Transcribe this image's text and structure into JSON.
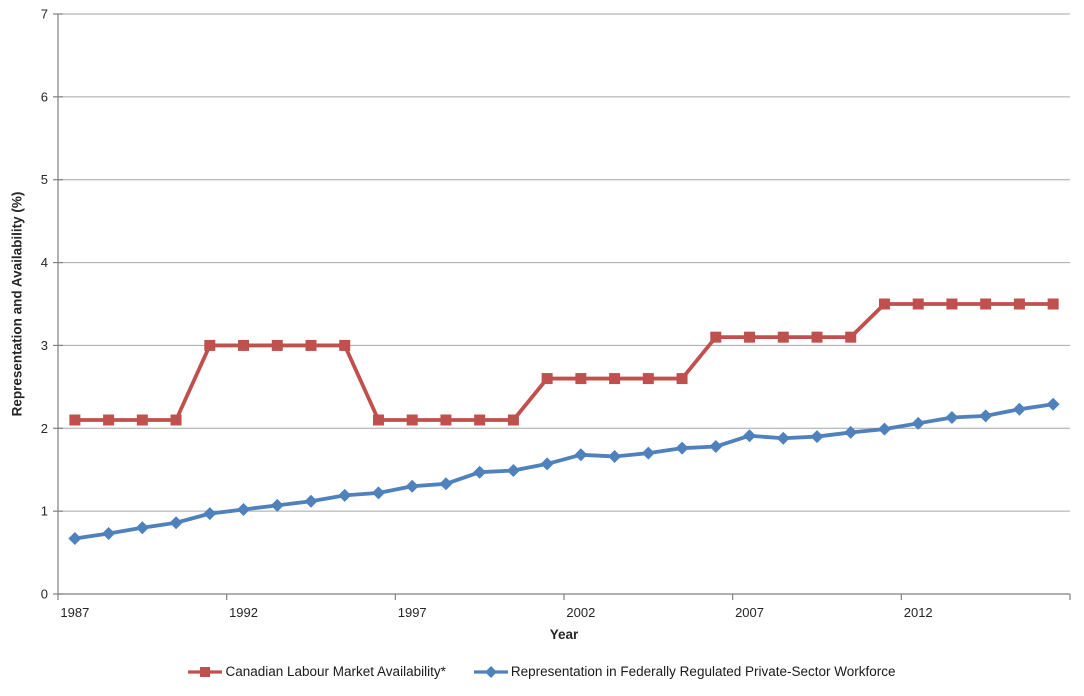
{
  "chart_data": {
    "type": "line",
    "title": "",
    "xlabel": "Year",
    "ylabel": "Representation and Availability (%)",
    "ylim": [
      0,
      7
    ],
    "yticks": [
      0,
      1,
      2,
      3,
      4,
      5,
      6,
      7
    ],
    "x": [
      1987,
      1988,
      1989,
      1990,
      1991,
      1992,
      1993,
      1994,
      1995,
      1996,
      1997,
      1998,
      1999,
      2000,
      2001,
      2002,
      2003,
      2004,
      2005,
      2006,
      2007,
      2008,
      2009,
      2010,
      2011,
      2012,
      2013,
      2014,
      2015,
      2016
    ],
    "xtick_labels": [
      "1987",
      "1992",
      "1997",
      "2002",
      "2007",
      "2012"
    ],
    "xtick_every": 5,
    "grid": true,
    "legend_position": "bottom",
    "series": [
      {
        "name": "Canadian Labour Market Availability*",
        "color": "#C0504D",
        "marker": "square",
        "values": [
          2.1,
          2.1,
          2.1,
          2.1,
          3.0,
          3.0,
          3.0,
          3.0,
          3.0,
          2.1,
          2.1,
          2.1,
          2.1,
          2.1,
          2.6,
          2.6,
          2.6,
          2.6,
          2.6,
          3.1,
          3.1,
          3.1,
          3.1,
          3.1,
          3.5,
          3.5,
          3.5,
          3.5,
          3.5,
          3.5
        ]
      },
      {
        "name": "Representation in Federally Regulated Private-Sector Workforce",
        "color": "#4F81BD",
        "marker": "diamond",
        "values": [
          0.67,
          0.73,
          0.8,
          0.86,
          0.97,
          1.02,
          1.07,
          1.12,
          1.19,
          1.22,
          1.3,
          1.33,
          1.47,
          1.49,
          1.57,
          1.68,
          1.66,
          1.7,
          1.76,
          1.78,
          1.91,
          1.88,
          1.9,
          1.95,
          1.99,
          2.06,
          2.13,
          2.15,
          2.23,
          2.29
        ]
      }
    ],
    "colors": {
      "background": "#ffffff",
      "gridline": "#A6A6A6",
      "axis": "#808080",
      "tick_text": "#262626"
    }
  }
}
